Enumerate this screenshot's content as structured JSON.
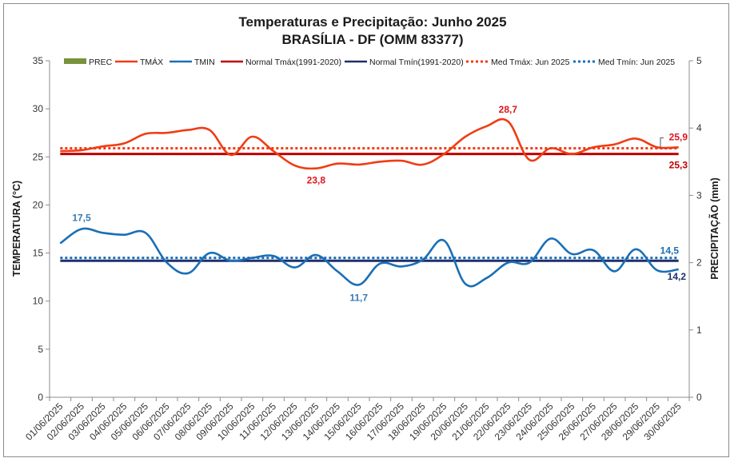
{
  "chart_data": {
    "type": "line",
    "title": "Temperaturas e Precipitação: Junho 2025",
    "subtitle": "BRASÍLIA - DF (OMM 83377)",
    "ylabel": "TEMPERATURA  (°C)",
    "y2label": "PRECIPITAÇÃO  (mm)",
    "ylim": [
      0,
      35
    ],
    "y2lim": [
      0,
      5
    ],
    "yticks": [
      "0",
      "5",
      "10",
      "15",
      "20",
      "25",
      "30",
      "35"
    ],
    "y2ticks": [
      "0",
      "1",
      "2",
      "3",
      "4",
      "5"
    ],
    "categories": [
      "01/06/2025",
      "02/06/2025",
      "03/06/2025",
      "04/06/2025",
      "05/06/2025",
      "06/06/2025",
      "07/06/2025",
      "08/06/2025",
      "09/06/2025",
      "10/06/2025",
      "11/06/2025",
      "12/06/2025",
      "13/06/2025",
      "14/06/2025",
      "15/06/2025",
      "16/06/2025",
      "17/06/2025",
      "18/06/2025",
      "19/06/2025",
      "20/06/2025",
      "21/06/2025",
      "22/06/2025",
      "23/06/2025",
      "24/06/2025",
      "25/06/2025",
      "26/06/2025",
      "27/06/2025",
      "28/06/2025",
      "29/06/2025",
      "30/06/2025"
    ],
    "series": [
      {
        "name": "PREC",
        "type": "bar",
        "axis": "right",
        "color": "#77933c",
        "values": [
          0,
          0,
          0,
          0,
          0,
          0,
          0,
          0,
          0,
          0,
          0,
          0,
          0,
          0,
          0,
          0,
          0,
          0,
          0,
          0,
          0,
          0,
          0,
          0,
          0,
          0,
          0,
          0,
          0,
          0
        ]
      },
      {
        "name": "TMÁX",
        "type": "line",
        "color": "#f03c14",
        "values": [
          25.6,
          25.7,
          26.1,
          26.4,
          27.4,
          27.5,
          27.8,
          27.8,
          25.2,
          27.1,
          25.6,
          24.1,
          23.8,
          24.3,
          24.2,
          24.5,
          24.6,
          24.2,
          25.3,
          27.1,
          28.2,
          28.7,
          24.7,
          25.9,
          25.3,
          26.0,
          26.3,
          26.9,
          26.0,
          26.0
        ]
      },
      {
        "name": "TMIN",
        "type": "line",
        "color": "#1a6fb6",
        "values": [
          16.0,
          17.5,
          17.1,
          16.9,
          17.1,
          14.0,
          12.9,
          15.0,
          14.2,
          14.5,
          14.7,
          13.5,
          14.8,
          13.1,
          11.7,
          13.9,
          13.6,
          14.3,
          16.3,
          11.8,
          12.4,
          14.0,
          14.0,
          16.5,
          14.9,
          15.3,
          13.1,
          15.4,
          13.2,
          13.3
        ]
      },
      {
        "name": "Normal Tmáx(1991-2020)",
        "type": "hline",
        "color": "#c00000",
        "value": 25.3
      },
      {
        "name": "Normal Tmín(1991-2020)",
        "type": "hline",
        "color": "#1f2f6a",
        "value": 14.2
      },
      {
        "name": "Med Tmáx: Jun 2025",
        "type": "hline-dotted",
        "color": "#f03c14",
        "value": 25.9
      },
      {
        "name": "Med Tmín: Jun 2025",
        "type": "hline-dotted",
        "color": "#1a6fb6",
        "value": 14.5
      }
    ],
    "annotations": [
      {
        "text": "28,7",
        "color": "#e0141e",
        "value": 28.7
      },
      {
        "text": "23,8",
        "color": "#e0141e",
        "value": 23.8
      },
      {
        "text": "25,9",
        "color": "#e0141e",
        "value": 25.9
      },
      {
        "text": "25,3",
        "color": "#c00000",
        "value": 25.3
      },
      {
        "text": "17,5",
        "color": "#3a78b8",
        "value": 17.5
      },
      {
        "text": "11,7",
        "color": "#3a78b8",
        "value": 11.7
      },
      {
        "text": "14,5",
        "color": "#1a6fb6",
        "value": 14.5
      },
      {
        "text": "14,2",
        "color": "#1f2f6a",
        "value": 14.2
      }
    ],
    "legend": "top"
  }
}
